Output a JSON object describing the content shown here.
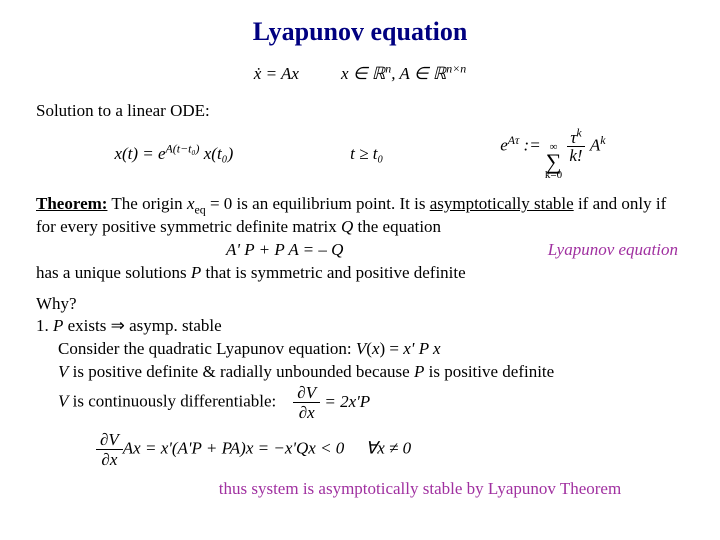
{
  "colors": {
    "title": "#000080",
    "accent": "#a030a0",
    "text": "#000000",
    "background": "#ffffff"
  },
  "title": "Lyapunov equation",
  "eq_top": {
    "xdot": "ẋ = Ax",
    "xin": "x ∈ ℝ",
    "xin_sup": "n",
    "comma": ", A ∈ ℝ",
    "ain_sup": "n×n"
  },
  "line_sol": "Solution to a linear ODE:",
  "eq_sol": {
    "xt": "x(t) = e",
    "exp1": "A(t−t₀)",
    "xt0": " x(t₀)",
    "cond": "t ≥ t₀",
    "eAt": "e",
    "eAt_sup": "Aτ",
    "colon": " := ",
    "sum_top": "∞",
    "sum_bot": "k=0",
    "frac_num": "τ",
    "frac_num_sup": "k",
    "frac_den": "k!",
    "ak": " A",
    "ak_sup": "k"
  },
  "theorem": {
    "label": "Theorem:",
    "part1": " The origin ",
    "xeq": "x",
    "xeq_sub": "eq",
    "part2": " = 0 is an equilibrium point. It is ",
    "asymp": "asymptotically stable",
    "part3": " if and only if for every positive symmetric definite matrix ",
    "q": "Q",
    "part4": " the equation",
    "eq": "A' P + P A = – Q",
    "lyap_label": "Lyapunov equation",
    "part5": "has a unique solutions ",
    "pvar": "P",
    "part6": " that is symmetric and positive definite"
  },
  "why": {
    "q": "Why?",
    "l1a": "1.  ",
    "l1b": "P",
    "l1c": " exists ⇒ asymp. stable",
    "l2a": "Consider the quadratic Lyapunov equation: ",
    "l2b": "V",
    "l2c": "(",
    "l2d": "x",
    "l2e": ") = ",
    "l2f": "x' P x",
    "l3a": "V",
    "l3b": " is positive definite & radially unbounded because ",
    "l3c": "P",
    "l3d": " is positive definite",
    "l4a": "V",
    "l4b": " is continuously differentiable:",
    "pd_num": "∂V",
    "pd_den": "∂x",
    "pd_rhs": " = 2x'P",
    "final_mid": "Ax = x'(A'P + PA)x = −x'Qx < 0",
    "final_cond": "∀x ≠ 0"
  },
  "conclusion": "thus system is asymptotically stable by Lyapunov Theorem"
}
